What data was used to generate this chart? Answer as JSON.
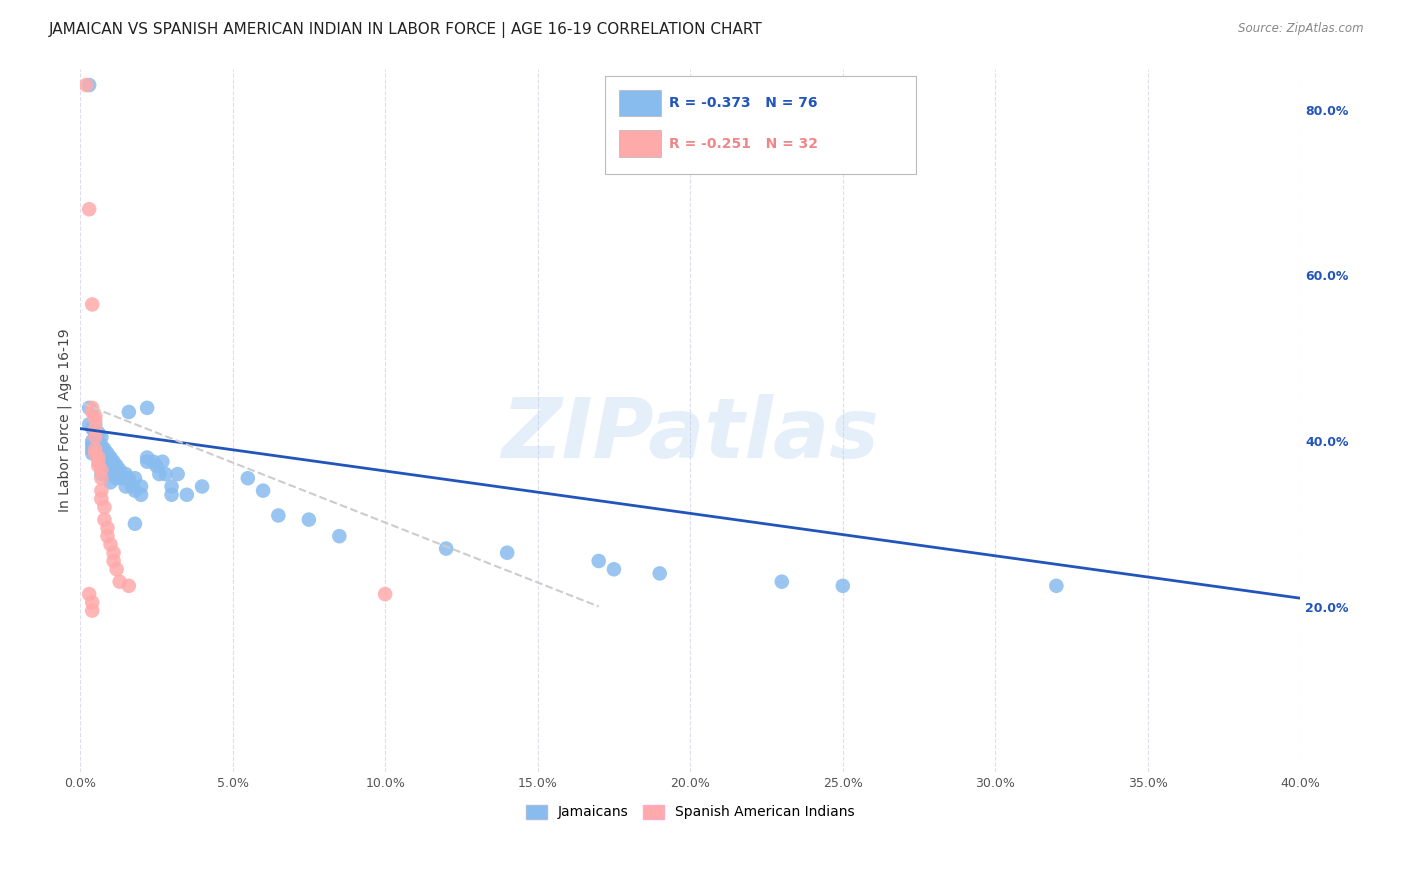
{
  "title": "JAMAICAN VS SPANISH AMERICAN INDIAN IN LABOR FORCE | AGE 16-19 CORRELATION CHART",
  "source": "Source: ZipAtlas.com",
  "ylabel": "In Labor Force | Age 16-19",
  "xlim": [
    0.0,
    0.4
  ],
  "ylim": [
    0.0,
    0.85
  ],
  "xticks": [
    0.0,
    0.05,
    0.1,
    0.15,
    0.2,
    0.25,
    0.3,
    0.35,
    0.4
  ],
  "xtick_labels": [
    "0.0%",
    "5.0%",
    "10.0%",
    "15.0%",
    "20.0%",
    "25.0%",
    "30.0%",
    "35.0%",
    "40.0%"
  ],
  "right_yticks": [
    0.2,
    0.4,
    0.6,
    0.8
  ],
  "right_ytick_labels": [
    "20.0%",
    "40.0%",
    "60.0%",
    "80.0%"
  ],
  "blue_color": "#88BBEE",
  "pink_color": "#FFAAAA",
  "blue_line_color": "#2255BB",
  "pink_line_color": "#EE8888",
  "watermark": "ZIPatlas",
  "legend_r1": "R = -0.373",
  "legend_n1": "N = 76",
  "legend_r2": "R = -0.251",
  "legend_n2": "N = 32",
  "blue_scatter": [
    [
      0.003,
      0.83
    ],
    [
      0.003,
      0.44
    ],
    [
      0.003,
      0.42
    ],
    [
      0.004,
      0.415
    ],
    [
      0.004,
      0.4
    ],
    [
      0.004,
      0.395
    ],
    [
      0.004,
      0.39
    ],
    [
      0.004,
      0.385
    ],
    [
      0.005,
      0.42
    ],
    [
      0.005,
      0.41
    ],
    [
      0.005,
      0.405
    ],
    [
      0.005,
      0.4
    ],
    [
      0.005,
      0.395
    ],
    [
      0.005,
      0.39
    ],
    [
      0.005,
      0.385
    ],
    [
      0.006,
      0.41
    ],
    [
      0.006,
      0.4
    ],
    [
      0.006,
      0.395
    ],
    [
      0.006,
      0.39
    ],
    [
      0.006,
      0.38
    ],
    [
      0.007,
      0.405
    ],
    [
      0.007,
      0.395
    ],
    [
      0.007,
      0.38
    ],
    [
      0.007,
      0.37
    ],
    [
      0.007,
      0.36
    ],
    [
      0.008,
      0.39
    ],
    [
      0.008,
      0.38
    ],
    [
      0.008,
      0.37
    ],
    [
      0.009,
      0.385
    ],
    [
      0.009,
      0.375
    ],
    [
      0.009,
      0.36
    ],
    [
      0.01,
      0.38
    ],
    [
      0.01,
      0.37
    ],
    [
      0.01,
      0.35
    ],
    [
      0.011,
      0.375
    ],
    [
      0.011,
      0.36
    ],
    [
      0.012,
      0.37
    ],
    [
      0.012,
      0.355
    ],
    [
      0.013,
      0.365
    ],
    [
      0.014,
      0.355
    ],
    [
      0.015,
      0.36
    ],
    [
      0.015,
      0.345
    ],
    [
      0.016,
      0.435
    ],
    [
      0.016,
      0.355
    ],
    [
      0.017,
      0.345
    ],
    [
      0.018,
      0.355
    ],
    [
      0.018,
      0.34
    ],
    [
      0.018,
      0.3
    ],
    [
      0.02,
      0.345
    ],
    [
      0.02,
      0.335
    ],
    [
      0.022,
      0.44
    ],
    [
      0.022,
      0.38
    ],
    [
      0.022,
      0.375
    ],
    [
      0.024,
      0.375
    ],
    [
      0.025,
      0.37
    ],
    [
      0.026,
      0.36
    ],
    [
      0.027,
      0.375
    ],
    [
      0.028,
      0.36
    ],
    [
      0.03,
      0.345
    ],
    [
      0.03,
      0.335
    ],
    [
      0.032,
      0.36
    ],
    [
      0.035,
      0.335
    ],
    [
      0.04,
      0.345
    ],
    [
      0.055,
      0.355
    ],
    [
      0.06,
      0.34
    ],
    [
      0.065,
      0.31
    ],
    [
      0.075,
      0.305
    ],
    [
      0.085,
      0.285
    ],
    [
      0.12,
      0.27
    ],
    [
      0.14,
      0.265
    ],
    [
      0.17,
      0.255
    ],
    [
      0.175,
      0.245
    ],
    [
      0.19,
      0.24
    ],
    [
      0.23,
      0.23
    ],
    [
      0.25,
      0.225
    ],
    [
      0.32,
      0.225
    ]
  ],
  "pink_scatter": [
    [
      0.002,
      0.83
    ],
    [
      0.003,
      0.68
    ],
    [
      0.004,
      0.565
    ],
    [
      0.004,
      0.44
    ],
    [
      0.004,
      0.435
    ],
    [
      0.005,
      0.43
    ],
    [
      0.005,
      0.425
    ],
    [
      0.005,
      0.415
    ],
    [
      0.005,
      0.405
    ],
    [
      0.005,
      0.39
    ],
    [
      0.005,
      0.385
    ],
    [
      0.006,
      0.38
    ],
    [
      0.006,
      0.375
    ],
    [
      0.006,
      0.37
    ],
    [
      0.007,
      0.365
    ],
    [
      0.007,
      0.355
    ],
    [
      0.007,
      0.34
    ],
    [
      0.007,
      0.33
    ],
    [
      0.008,
      0.32
    ],
    [
      0.008,
      0.305
    ],
    [
      0.009,
      0.295
    ],
    [
      0.009,
      0.285
    ],
    [
      0.01,
      0.275
    ],
    [
      0.011,
      0.265
    ],
    [
      0.011,
      0.255
    ],
    [
      0.012,
      0.245
    ],
    [
      0.013,
      0.23
    ],
    [
      0.016,
      0.225
    ],
    [
      0.003,
      0.215
    ],
    [
      0.004,
      0.205
    ],
    [
      0.004,
      0.195
    ],
    [
      0.1,
      0.215
    ]
  ],
  "blue_trend_x": [
    0.0,
    0.4
  ],
  "blue_trend_y": [
    0.415,
    0.21
  ],
  "pink_trend_x": [
    0.001,
    0.17
  ],
  "pink_trend_y": [
    0.445,
    0.2
  ],
  "background_color": "#FFFFFF",
  "grid_color": "#DDDDEE",
  "title_fontsize": 11,
  "axis_label_fontsize": 10,
  "tick_fontsize": 9
}
